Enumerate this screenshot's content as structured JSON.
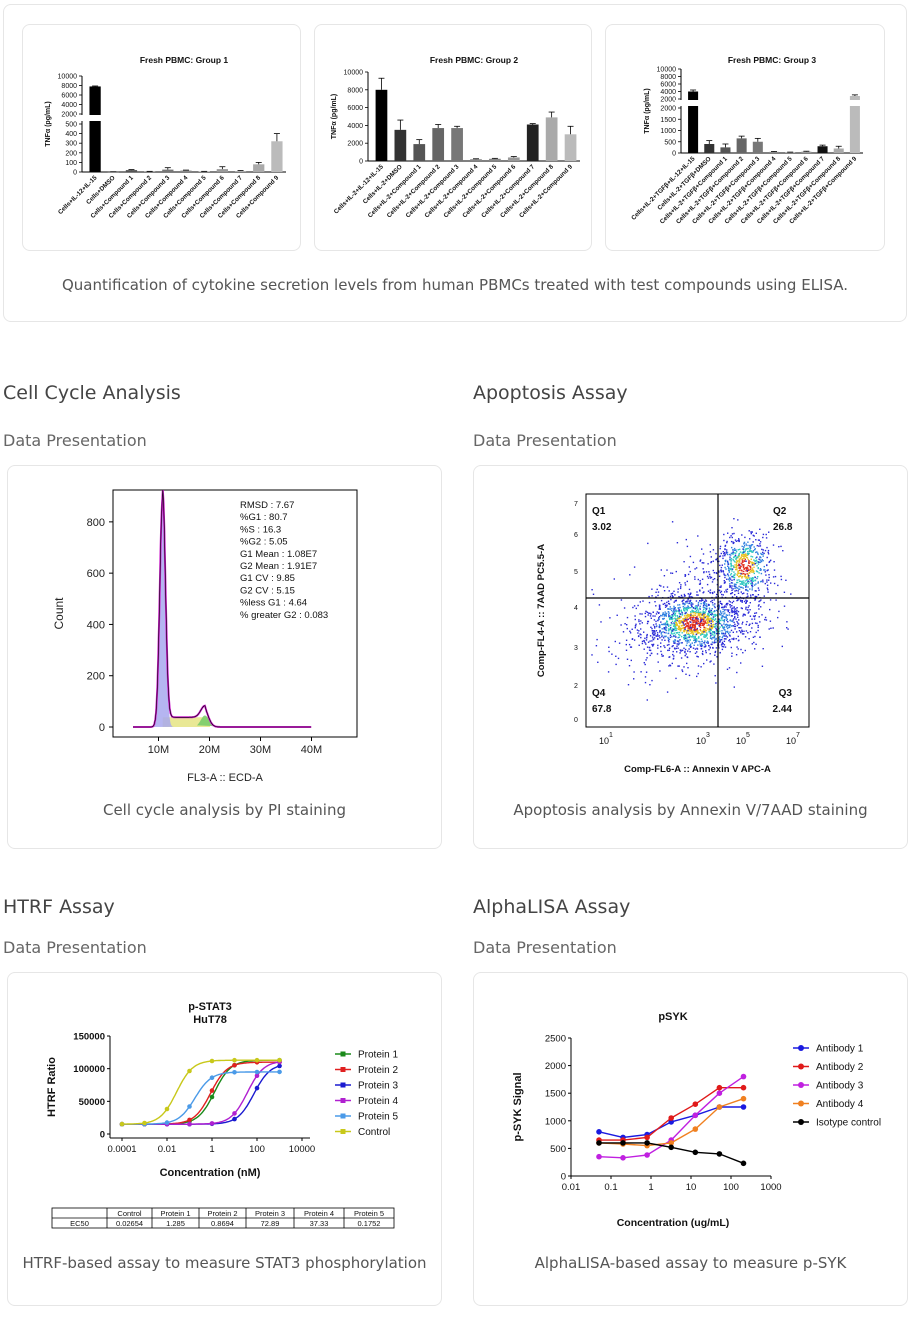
{
  "top": {
    "caption": "Quantification of cytokine secretion levels from human PBMCs treated with test compounds using ELISA."
  },
  "sections": {
    "cell_cycle": {
      "title": "Cell Cycle Analysis",
      "subtitle": "Data Presentation",
      "caption": "Cell cycle analysis by PI staining"
    },
    "apoptosis": {
      "title": "Apoptosis Assay",
      "subtitle": "Data Presentation",
      "caption": "Apoptosis analysis by Annexin V/7AAD staining"
    },
    "htrf": {
      "title": "HTRF Assay",
      "subtitle": "Data Presentation",
      "caption": "HTRF-based assay to measure STAT3 phosphorylation"
    },
    "alphalisa": {
      "title": "AlphaLISA Assay",
      "subtitle": "Data Presentation",
      "caption": "AlphaLISA-based assay to measure p-SYK"
    }
  },
  "chart_data": [
    {
      "type": "bar",
      "title": "Fresh PBMC: Group 1",
      "ylabel": "TNFα (pg/mL)",
      "yticks_upper": [
        "10000",
        "8000",
        "6000",
        "4000",
        "2000"
      ],
      "yticks_lower": [
        "500",
        "400",
        "300",
        "200",
        "100",
        "0"
      ],
      "categories": [
        "Cells+IL-12+IL-15",
        "Cells+DMSO",
        "Cells+Compound 1",
        "Cells+Compound 2",
        "Cells+Compound 3",
        "Cells+Compound 4",
        "Cells+Compound 5",
        "Cells+Compound 6",
        "Cells+Compound 7",
        "Cells+Compound 8",
        "Cells+Compound 9"
      ],
      "values": [
        7800,
        2,
        20,
        5,
        25,
        15,
        5,
        30,
        10,
        80,
        320
      ],
      "errors": [
        100,
        1,
        5,
        2,
        20,
        5,
        2,
        25,
        5,
        20,
        80
      ],
      "colors": [
        "#000000",
        "#3a3a3a",
        "#555555",
        "#666666",
        "#777777",
        "#888888",
        "#999999",
        "#999999",
        "#aaaaaa",
        "#aaaaaa",
        "#bbbbbb"
      ]
    },
    {
      "type": "bar",
      "title": "Fresh PBMC: Group 2",
      "ylabel": "TNFα (pg/mL)",
      "yticks": [
        "10000",
        "8000",
        "6000",
        "4000",
        "2000",
        "0"
      ],
      "ylim": [
        0,
        10000
      ],
      "categories": [
        "Cells+IL-2+IL-12+IL-15",
        "Cells+IL-2+DMSO",
        "Cells+IL-2+Compound 1",
        "Cells+IL-2+Compound 2",
        "Cells+IL-2+Compound 3",
        "Cells+IL-2+Compound 4",
        "Cells+IL-2+Compound 5",
        "Cells+IL-2+Compound 6",
        "Cells+IL-2+Compound 7",
        "Cells+IL-2+Compound 8",
        "Cells+IL-2+Compound 9"
      ],
      "values": [
        8000,
        3500,
        1900,
        3700,
        3700,
        200,
        250,
        400,
        4100,
        4900,
        3000
      ],
      "errors": [
        1300,
        1100,
        500,
        400,
        200,
        50,
        50,
        100,
        100,
        600,
        900
      ],
      "colors": [
        "#000000",
        "#333333",
        "#555555",
        "#666666",
        "#777777",
        "#888888",
        "#888888",
        "#999999",
        "#222222",
        "#aaaaaa",
        "#bbbbbb"
      ]
    },
    {
      "type": "bar",
      "title": "Fresh PBMC: Group 3",
      "ylabel": "TNFα (pg/mL)",
      "yticks_upper": [
        "10000",
        "8000",
        "6000",
        "4000",
        "2000"
      ],
      "yticks_lower": [
        "2000",
        "1500",
        "1000",
        "500",
        "0"
      ],
      "categories": [
        "Cells+IL-2+TGFβ+IL-12+IL-15",
        "Cells+IL-2+TGFβ+DMSO",
        "Cells+IL-2+TGFβ+Compound 1",
        "Cells+IL-2+TGFβ+Compound 2",
        "Cells+IL-2+TGFβ+Compound 3",
        "Cells+IL-2+TGFβ+Compound 4",
        "Cells+IL-2+TGFβ+Compound 5",
        "Cells+IL-2+TGFβ+Compound 6",
        "Cells+IL-2+TGFβ+Compound 7",
        "Cells+IL-2+TGFβ+Compound 8",
        "Cells+IL-2+TGFβ+Compound 9"
      ],
      "values": [
        4000,
        400,
        250,
        650,
        500,
        50,
        30,
        60,
        300,
        200,
        2800
      ],
      "errors": [
        400,
        150,
        150,
        100,
        150,
        20,
        10,
        20,
        50,
        100,
        300
      ],
      "colors": [
        "#000000",
        "#333333",
        "#555555",
        "#666666",
        "#777777",
        "#888888",
        "#999999",
        "#999999",
        "#111111",
        "#aaaaaa",
        "#bbbbbb"
      ]
    },
    {
      "type": "area",
      "xlabel": "FL3-A :: ECD-A",
      "ylabel": "Count",
      "xticks": [
        "10M",
        "20M",
        "30M",
        "40M"
      ],
      "yticks": [
        "0",
        "200",
        "400",
        "600",
        "800"
      ],
      "ylim": [
        0,
        950
      ],
      "stats": [
        "RMSD : 7.67",
        "%G1 : 80.7",
        "%S : 16.3",
        "%G2 : 5.05",
        "G1 Mean : 1.08E7",
        "G2 Mean : 1.91E7",
        "G1 CV : 9.85",
        "G2 CV : 5.15",
        "%less G1 : 4.64",
        "% greater G2 : 0.083"
      ],
      "g1_peak": {
        "x": 10.8,
        "y": 890
      },
      "g2_peak": {
        "x": 19.1,
        "y": 45
      }
    },
    {
      "type": "scatter",
      "xlabel": "Comp-FL6-A :: Annexin V APC-A",
      "ylabel": "Comp-FL4-A :: 7AAD PC5.5-A",
      "quadrants": [
        {
          "name": "Q1",
          "value": "3.02"
        },
        {
          "name": "Q2",
          "value": "26.8"
        },
        {
          "name": "Q3",
          "value": "2.44"
        },
        {
          "name": "Q4",
          "value": "67.8"
        }
      ]
    },
    {
      "type": "line",
      "title": "p-STAT3",
      "subtitle": "HuT78",
      "xlabel": "Concentration (nM)",
      "ylabel": "HTRF Ratio",
      "xscale": "log",
      "xticks": [
        "0.0001",
        "0.01",
        "1",
        "100",
        "10000"
      ],
      "yticks": [
        "0",
        "50000",
        "100000",
        "150000"
      ],
      "ylim": [
        0,
        150000
      ],
      "series": [
        {
          "name": "Protein 1",
          "color": "#1a8a1a",
          "ec50": 1.285
        },
        {
          "name": "Protein 2",
          "color": "#e02020",
          "ec50": 0.8694
        },
        {
          "name": "Protein 3",
          "color": "#1a1ad0",
          "ec50": 72.89
        },
        {
          "name": "Protein 4",
          "color": "#b020d0",
          "ec50": 37.33
        },
        {
          "name": "Protein 5",
          "color": "#4a9ae8",
          "ec50": 0.1752
        },
        {
          "name": "Control",
          "color": "#c8c81a",
          "ec50": 0.02654
        }
      ],
      "table": {
        "headers": [
          "",
          "Control",
          "Protein 1",
          "Protein 2",
          "Protein 3",
          "Protein 4",
          "Protein 5"
        ],
        "row": [
          "EC50",
          "0.02654",
          "1.285",
          "0.8694",
          "72.89",
          "37.33",
          "0.1752"
        ]
      }
    },
    {
      "type": "line",
      "title": "pSYK",
      "xlabel": "Concentration (ug/mL)",
      "ylabel": "p-SYK Signal",
      "xscale": "log",
      "xticks": [
        "0.01",
        "0.1",
        "1",
        "10",
        "100",
        "1000"
      ],
      "yticks": [
        "0",
        "500",
        "1000",
        "1500",
        "2000",
        "2500"
      ],
      "ylim": [
        0,
        2500
      ],
      "x": [
        0.05,
        0.2,
        0.8,
        3.2,
        12.8,
        51.2,
        204.8
      ],
      "series": [
        {
          "name": "Antibody 1",
          "color": "#1a1ae0",
          "values": [
            800,
            700,
            750,
            980,
            1100,
            1250,
            1250
          ]
        },
        {
          "name": "Antibody 2",
          "color": "#e01a1a",
          "values": [
            650,
            650,
            700,
            1050,
            1300,
            1600,
            1600
          ]
        },
        {
          "name": "Antibody 3",
          "color": "#c020e0",
          "values": [
            350,
            330,
            380,
            650,
            1100,
            1500,
            1800
          ]
        },
        {
          "name": "Antibody 4",
          "color": "#f08020",
          "values": [
            600,
            580,
            550,
            600,
            850,
            1250,
            1400
          ]
        },
        {
          "name": "Isotype control",
          "color": "#000000",
          "values": [
            600,
            600,
            600,
            520,
            430,
            400,
            230
          ]
        }
      ]
    }
  ]
}
